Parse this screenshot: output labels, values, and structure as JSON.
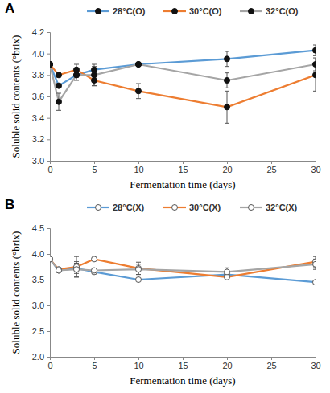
{
  "chart_data": [
    {
      "type": "line",
      "panel": "A",
      "x_label": "Fermentation time (days)",
      "y_label": "Soluble solid contents (°brix)",
      "x": [
        0,
        1,
        3,
        5,
        10,
        20,
        30
      ],
      "xlim": [
        0,
        30
      ],
      "xticks": [
        0,
        5,
        10,
        15,
        20,
        25,
        30
      ],
      "ylim": [
        3.0,
        4.2
      ],
      "yticks": [
        {
          "value": 3.0,
          "label": "3.0"
        },
        3.2,
        3.4,
        3.6,
        3.8,
        {
          "value": 4.0,
          "label": "4.0"
        },
        4.2
      ],
      "grid": false,
      "legend": "top",
      "marker": "circle",
      "series": [
        {
          "name": "28°C(O)",
          "color": "#5b9bd5",
          "values": [
            3.9,
            3.7,
            3.8,
            3.85,
            3.9,
            3.95,
            4.03
          ],
          "errors": [
            0,
            0.02,
            0.02,
            0.03,
            0.01,
            0.07,
            0.05
          ]
        },
        {
          "name": "30°C(O)",
          "color": "#ed7d31",
          "values": [
            3.9,
            3.8,
            3.85,
            3.75,
            3.65,
            3.5,
            3.8
          ],
          "errors": [
            0,
            0.02,
            0.05,
            0.05,
            0.07,
            0.15,
            0.15
          ]
        },
        {
          "name": "32°C(O)",
          "color": "#a5a5a5",
          "values": [
            3.9,
            3.55,
            3.8,
            3.8,
            3.9,
            3.75,
            3.9
          ],
          "errors": [
            0,
            0.08,
            0.05,
            0.1,
            0.01,
            0.07,
            0.06
          ]
        }
      ]
    },
    {
      "type": "line",
      "panel": "B",
      "x_label": "Fermentation time (days)",
      "y_label": "Soluble solid contents (°brix)",
      "x": [
        0,
        1,
        3,
        5,
        10,
        20,
        30
      ],
      "xlim": [
        0,
        30
      ],
      "xticks": [
        0,
        5,
        10,
        15,
        20,
        25,
        30
      ],
      "ylim": [
        2.0,
        4.5
      ],
      "yticks": [
        {
          "value": 2.0,
          "label": "2.0"
        },
        2.5,
        {
          "value": 3.0,
          "label": "3.0"
        },
        3.5,
        {
          "value": 4.0,
          "label": "4.0"
        },
        4.5
      ],
      "grid": false,
      "legend": "top",
      "marker": "open-circle",
      "series": [
        {
          "name": "28°C(X)",
          "color": "#5b9bd5",
          "values": [
            3.9,
            3.68,
            3.72,
            3.65,
            3.5,
            3.6,
            3.45
          ],
          "errors": [
            0,
            0.03,
            0.1,
            0.04,
            0.02,
            0.05,
            0.02
          ]
        },
        {
          "name": "30°C(X)",
          "color": "#ed7d31",
          "values": [
            3.9,
            3.7,
            3.75,
            3.9,
            3.72,
            3.55,
            3.85
          ],
          "errors": [
            0,
            0.02,
            0.2,
            0.03,
            0.12,
            0.05,
            0.1
          ]
        },
        {
          "name": "32°C(X)",
          "color": "#a5a5a5",
          "values": [
            3.9,
            3.68,
            3.7,
            3.68,
            3.7,
            3.65,
            3.8
          ],
          "errors": [
            0,
            0.02,
            0.15,
            0.04,
            0.1,
            0.08,
            0.1
          ]
        }
      ]
    }
  ]
}
